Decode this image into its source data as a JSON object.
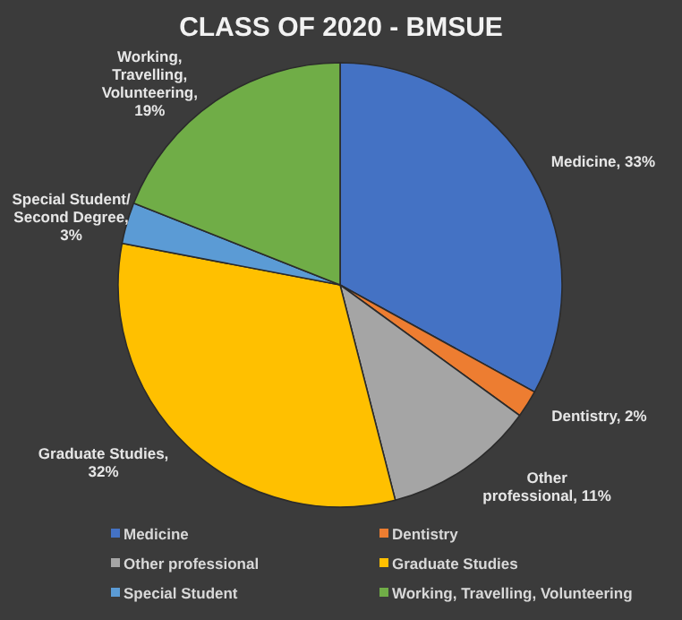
{
  "chart_data": {
    "type": "pie",
    "title": "CLASS OF 2020 - BMSUE",
    "categories": [
      "Medicine",
      "Dentistry",
      "Other professional",
      "Graduate Studies",
      "Special Student",
      "Working, Travelling, Volunteering"
    ],
    "values": [
      33,
      2,
      11,
      32,
      3,
      19
    ],
    "colors": [
      "#4472c4",
      "#ed7d31",
      "#a5a5a5",
      "#ffc000",
      "#5b9bd5",
      "#70ad47"
    ],
    "value_labels": [
      "Medicine, 33%",
      "Dentistry, 2%",
      "Other\nprofessional, 11%",
      "Graduate Studies,\n32%",
      "Special Student/\nSecond Degree,\n3%",
      "Working,\nTravelling,\nVolunteering,\n19%"
    ],
    "legend": "bottom"
  }
}
